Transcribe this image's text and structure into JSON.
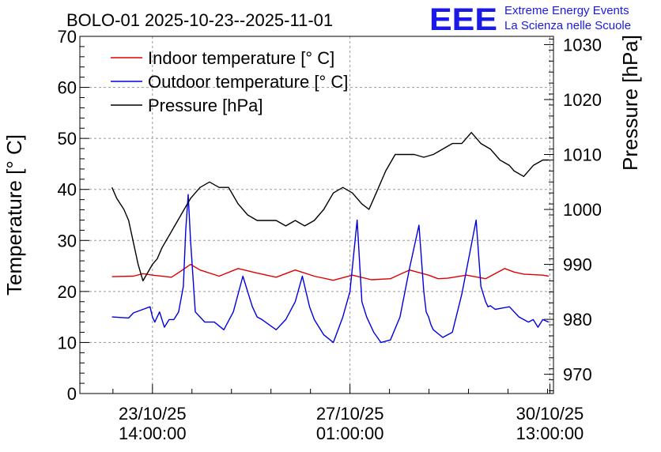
{
  "title": "BOLO-01 2025-10-23--2025-11-01",
  "logo": {
    "mark": "EEE",
    "line1": "Extreme Energy Events",
    "line2": "La Scienza nelle Scuole",
    "color": "#1a1ae6"
  },
  "chart_data": {
    "type": "line",
    "title": "BOLO-01 2025-10-23--2025-11-01",
    "xlabel": "",
    "ylabel": "Temperature [° C]",
    "y2label": "Pressure [hPa]",
    "ylim": [
      0,
      70
    ],
    "y2lim": [
      966.5,
      1031.5
    ],
    "xlim_hours": [
      -30.5,
      168.5
    ],
    "x_unit": "hours since 23/10/25 14:00:00",
    "grid": true,
    "legend_position": "top-left",
    "yticks": [
      0,
      10,
      20,
      30,
      40,
      50,
      60,
      70
    ],
    "y2ticks": [
      970,
      980,
      990,
      1000,
      1010,
      1020,
      1030
    ],
    "xticks": [
      {
        "x": 0,
        "line1": "23/10/25",
        "line2": "14:00:00"
      },
      {
        "x": 83,
        "line1": "27/10/25",
        "line2": "01:00:00"
      },
      {
        "x": 167,
        "line1": "30/10/25",
        "line2": "13:00:00"
      }
    ],
    "series": [
      {
        "name": "Indoor temperature [° C]",
        "color": "#e00000",
        "axis": "left",
        "x": [
          -17,
          -8,
          -4,
          0,
          8,
          12,
          16,
          20,
          28,
          36,
          44,
          52,
          60,
          68,
          76,
          84,
          92,
          100,
          108,
          116,
          120,
          124,
          132,
          140,
          148,
          152,
          156,
          164,
          166.5
        ],
        "y": [
          22.9,
          23.0,
          23.5,
          23.2,
          22.8,
          24.0,
          25.3,
          24.2,
          23.0,
          24.5,
          23.6,
          22.8,
          24.2,
          23.0,
          22.2,
          23.2,
          22.3,
          22.5,
          24.2,
          23.2,
          22.5,
          22.6,
          23.2,
          22.5,
          24.5,
          23.8,
          23.4,
          23.2,
          23.0
        ]
      },
      {
        "name": "Outdoor temperature [° C]",
        "color": "#0000e0",
        "axis": "left",
        "x": [
          -17,
          -10,
          -8,
          -4,
          -1,
          0,
          1,
          3,
          5,
          7,
          9,
          11,
          13,
          14,
          15,
          16,
          18,
          20,
          22,
          26,
          30,
          34,
          38,
          40,
          42,
          44,
          46,
          52,
          56,
          60,
          63,
          66,
          68,
          72,
          76,
          80,
          83,
          86,
          88,
          90,
          91,
          92,
          93,
          96,
          100,
          104,
          108,
          112,
          114,
          115,
          116,
          117,
          118,
          122,
          126,
          130,
          136,
          138,
          140,
          141,
          142,
          144,
          150,
          154,
          158,
          160,
          162,
          164,
          166.5
        ],
        "y": [
          15.0,
          14.8,
          15.8,
          16.5,
          17.0,
          15.0,
          14.0,
          16.0,
          13.0,
          14.5,
          14.5,
          16.0,
          21.0,
          32.0,
          39.0,
          30.0,
          16.0,
          15.0,
          14.0,
          14.0,
          12.5,
          16.0,
          23.0,
          20.0,
          17.0,
          15.0,
          14.5,
          12.5,
          14.5,
          18.0,
          23.0,
          17.0,
          14.5,
          11.5,
          10.0,
          15.0,
          20.0,
          34.0,
          18.0,
          15.0,
          14.0,
          13.0,
          12.0,
          10.0,
          10.5,
          15.0,
          24.5,
          33.0,
          20.0,
          16.0,
          15.0,
          13.5,
          12.5,
          11.0,
          12.0,
          19.5,
          34.0,
          21.0,
          18.0,
          17.0,
          17.2,
          16.5,
          17.0,
          15.0,
          14.0,
          14.5,
          13.0,
          14.5,
          14.0
        ]
      },
      {
        "name": "Pressure [hPa]",
        "color": "#000000",
        "axis": "right",
        "x": [
          -17,
          -15,
          -12,
          -10,
          -8,
          -6,
          -4,
          -2,
          0,
          2,
          4,
          8,
          12,
          16,
          20,
          24,
          28,
          32,
          36,
          40,
          44,
          48,
          52,
          56,
          60,
          64,
          68,
          72,
          76,
          80,
          84,
          88,
          91,
          94,
          98,
          102,
          106,
          110,
          114,
          118,
          122,
          126,
          130,
          134,
          138,
          142,
          146,
          150,
          152,
          156,
          160,
          164,
          166.5
        ],
        "y": [
          1004,
          1002,
          1000,
          998,
          994,
          990,
          987,
          988.5,
          990,
          991,
          993,
          996,
          999,
          1002,
          1004,
          1005,
          1004,
          1004,
          1001,
          999,
          998,
          998,
          998,
          997,
          998,
          997,
          998,
          1000,
          1003,
          1004,
          1003,
          1001,
          1000,
          1003,
          1007,
          1010,
          1010,
          1010,
          1009.5,
          1010,
          1011,
          1012,
          1012,
          1014,
          1012,
          1011,
          1009,
          1008,
          1007,
          1006,
          1008,
          1009,
          1009
        ]
      }
    ]
  }
}
